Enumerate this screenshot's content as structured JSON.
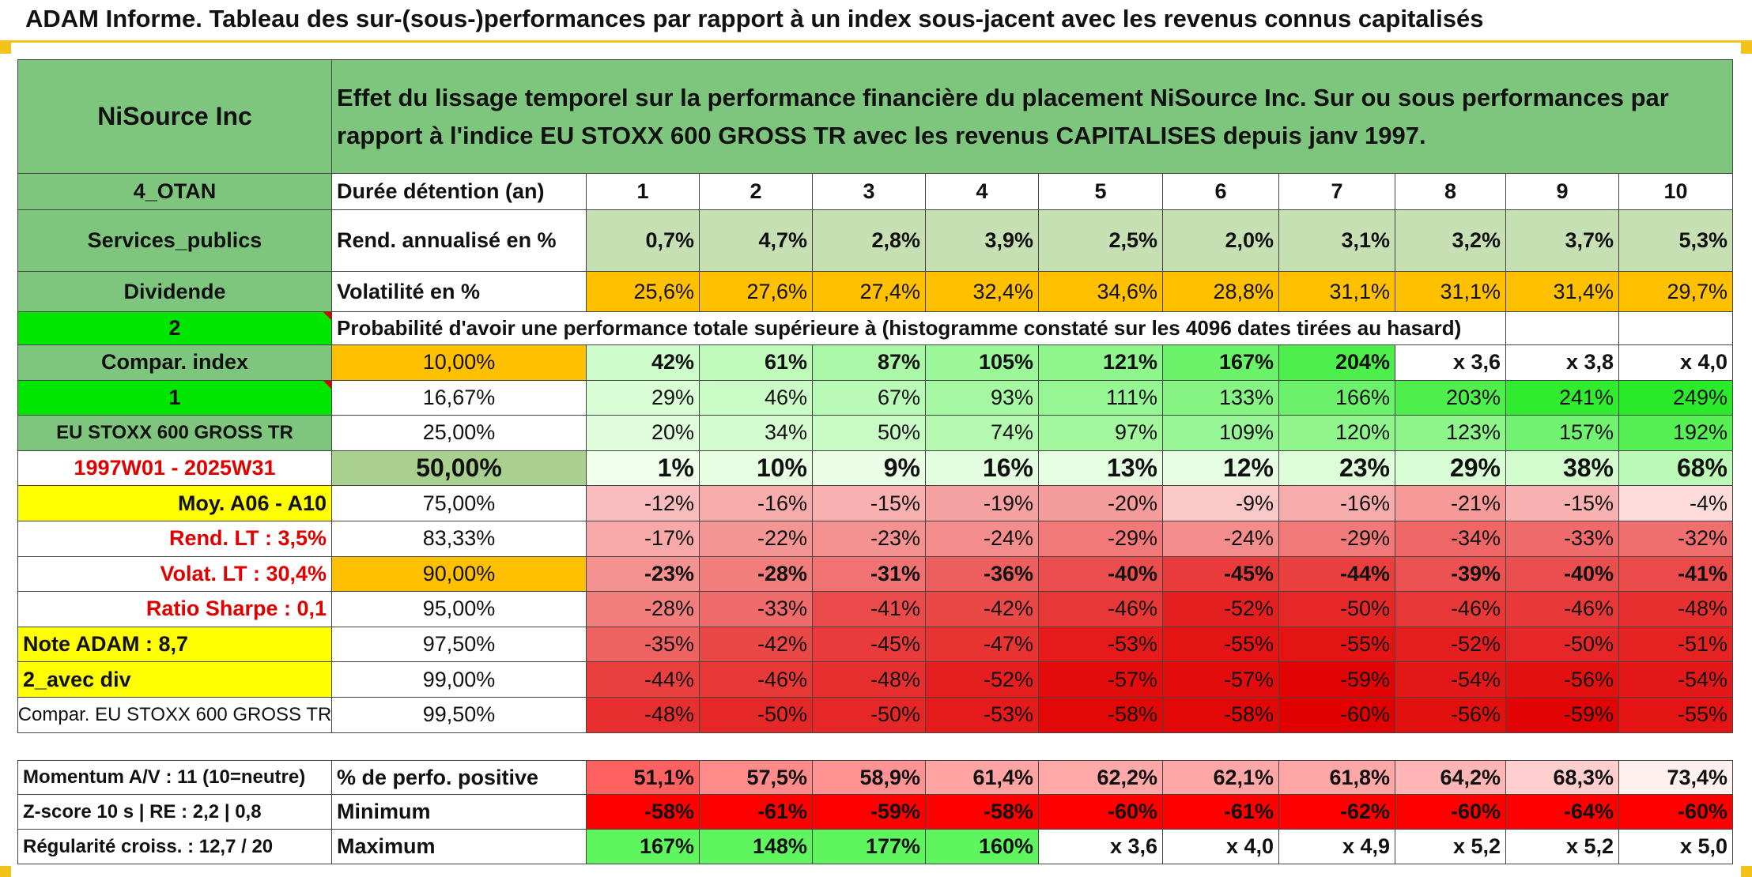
{
  "title": "ADAM Informe. Tableau des sur-(sous-)performances par rapport à un index sous-jacent avec les revenus connus capitalisés",
  "colors": {
    "header_green": "#7ec57e",
    "light_green": "#c6e0b4",
    "orange": "#ffc000",
    "bright_green": "#00e600",
    "yellow": "#ffff00",
    "red": "#ff0000",
    "accent": "#f3c21b"
  },
  "info": {
    "name": "NiSource Inc",
    "description": "Effet du lissage temporel sur la performance financière du placement NiSource Inc. Sur ou sous performances par rapport à l'indice EU STOXX 600 GROSS TR avec les revenus CAPITALISES depuis janv 1997.",
    "code": "4_OTAN",
    "sector": "Services_publics",
    "dividend": "Dividende",
    "num_a": "2",
    "compar_index": "Compar. index",
    "num_b": "1",
    "index_name": "EU STOXX 600 GROSS TR",
    "period": "1997W01 - 2025W31",
    "moy": "Moy. A06 - A10",
    "rend_lt": "Rend. LT :   3,5%",
    "volat_lt": "Volat. LT :   30,4%",
    "sharpe": "Ratio Sharpe :   0,1",
    "note": "Note ADAM : 8,7",
    "avec_div": "2_avec div",
    "compar_full": "Compar. EU STOXX 600 GROSS TR",
    "momentum": "Momentum A/V : 11 (10=neutre)",
    "zscore": "Z-score 10 s | RE : 2,2 | 0,8",
    "regularite": "Régularité croiss. : 12,7 / 20"
  },
  "labels": {
    "duree": "Durée détention (an)",
    "rend": "Rend. annualisé en %",
    "volat": "Volatilité en %",
    "probability": "Probabilité d'avoir une performance totale supérieure à (histogramme constaté sur les 4096 dates tirées au hasard)",
    "perf_pos": "% de perfo. positive",
    "minimum": "Minimum",
    "maximum": "Maximum"
  },
  "years": [
    "1",
    "2",
    "3",
    "4",
    "5",
    "6",
    "7",
    "8",
    "9",
    "10"
  ],
  "rend": [
    "0,7%",
    "4,7%",
    "2,8%",
    "3,9%",
    "2,5%",
    "2,0%",
    "3,1%",
    "3,2%",
    "3,7%",
    "5,3%"
  ],
  "volat": [
    "25,6%",
    "27,6%",
    "27,4%",
    "32,4%",
    "34,6%",
    "28,8%",
    "31,1%",
    "31,1%",
    "31,4%",
    "29,7%"
  ],
  "percentile_rows": [
    {
      "p": "10,00%",
      "values": [
        "42%",
        "61%",
        "87%",
        "105%",
        "121%",
        "167%",
        "204%",
        "x 3,6",
        "x 3,8",
        "x 4,0"
      ]
    },
    {
      "p": "16,67%",
      "values": [
        "29%",
        "46%",
        "67%",
        "93%",
        "111%",
        "133%",
        "166%",
        "203%",
        "241%",
        "249%"
      ]
    },
    {
      "p": "25,00%",
      "values": [
        "20%",
        "34%",
        "50%",
        "74%",
        "97%",
        "109%",
        "120%",
        "123%",
        "157%",
        "192%"
      ]
    },
    {
      "p": "50,00%",
      "values": [
        "1%",
        "10%",
        "9%",
        "16%",
        "13%",
        "12%",
        "23%",
        "29%",
        "38%",
        "68%"
      ]
    },
    {
      "p": "75,00%",
      "values": [
        "-12%",
        "-16%",
        "-15%",
        "-19%",
        "-20%",
        "-9%",
        "-16%",
        "-21%",
        "-15%",
        "-4%"
      ]
    },
    {
      "p": "83,33%",
      "values": [
        "-17%",
        "-22%",
        "-23%",
        "-24%",
        "-29%",
        "-24%",
        "-29%",
        "-34%",
        "-33%",
        "-32%"
      ]
    },
    {
      "p": "90,00%",
      "values": [
        "-23%",
        "-28%",
        "-31%",
        "-36%",
        "-40%",
        "-45%",
        "-44%",
        "-39%",
        "-40%",
        "-41%"
      ]
    },
    {
      "p": "95,00%",
      "values": [
        "-28%",
        "-33%",
        "-41%",
        "-42%",
        "-46%",
        "-52%",
        "-50%",
        "-46%",
        "-46%",
        "-48%"
      ]
    },
    {
      "p": "97,50%",
      "values": [
        "-35%",
        "-42%",
        "-45%",
        "-47%",
        "-53%",
        "-55%",
        "-55%",
        "-52%",
        "-50%",
        "-51%"
      ]
    },
    {
      "p": "99,00%",
      "values": [
        "-44%",
        "-46%",
        "-48%",
        "-52%",
        "-57%",
        "-57%",
        "-59%",
        "-54%",
        "-56%",
        "-54%"
      ]
    },
    {
      "p": "99,50%",
      "values": [
        "-48%",
        "-50%",
        "-50%",
        "-53%",
        "-58%",
        "-58%",
        "-60%",
        "-56%",
        "-59%",
        "-55%"
      ]
    }
  ],
  "perf_pos": [
    "51,1%",
    "57,5%",
    "58,9%",
    "61,4%",
    "62,2%",
    "62,1%",
    "61,8%",
    "64,2%",
    "68,3%",
    "73,4%"
  ],
  "minimum": [
    "-58%",
    "-61%",
    "-59%",
    "-58%",
    "-60%",
    "-61%",
    "-62%",
    "-60%",
    "-64%",
    "-60%"
  ],
  "maximum": [
    "167%",
    "148%",
    "177%",
    "160%",
    "x 3,6",
    "x 4,0",
    "x 4,9",
    "x 5,2",
    "x 5,2",
    "x 5,0"
  ]
}
